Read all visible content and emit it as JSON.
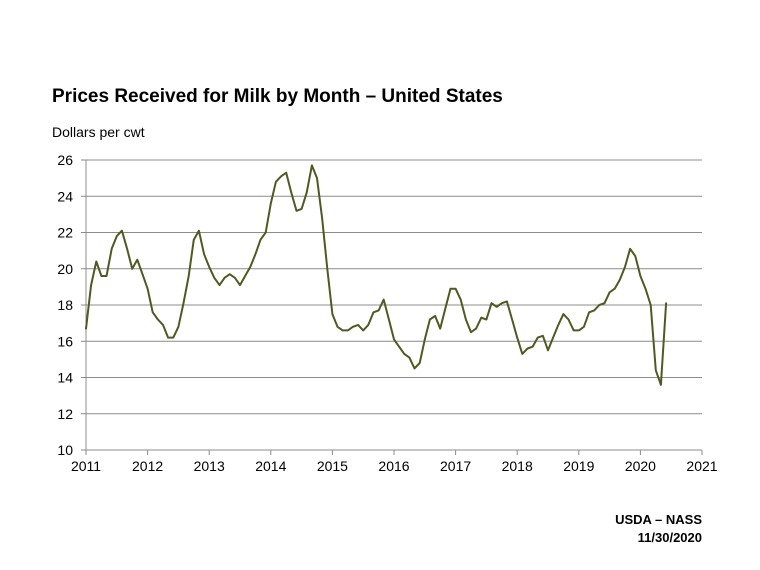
{
  "chart_data": {
    "type": "line",
    "title": "Prices Received for Milk by Month – United States",
    "ylabel": "Dollars per cwt",
    "xlabel": "",
    "xlim": [
      2011,
      2021
    ],
    "ylim": [
      10,
      26
    ],
    "x_ticks": [
      "2011",
      "2012",
      "2013",
      "2014",
      "2015",
      "2016",
      "2017",
      "2018",
      "2019",
      "2020",
      "2021"
    ],
    "y_ticks": [
      "10",
      "12",
      "14",
      "16",
      "18",
      "20",
      "22",
      "24",
      "26"
    ],
    "grid": "horizontal",
    "series": [
      {
        "color": "#4f5a23",
        "x": [
          2011.0,
          2011.083,
          2011.167,
          2011.25,
          2011.333,
          2011.417,
          2011.5,
          2011.583,
          2011.667,
          2011.75,
          2011.833,
          2011.917,
          2012.0,
          2012.083,
          2012.167,
          2012.25,
          2012.333,
          2012.417,
          2012.5,
          2012.583,
          2012.667,
          2012.75,
          2012.833,
          2012.917,
          2013.0,
          2013.083,
          2013.167,
          2013.25,
          2013.333,
          2013.417,
          2013.5,
          2013.583,
          2013.667,
          2013.75,
          2013.833,
          2013.917,
          2014.0,
          2014.083,
          2014.167,
          2014.25,
          2014.333,
          2014.417,
          2014.5,
          2014.583,
          2014.667,
          2014.75,
          2014.833,
          2014.917,
          2015.0,
          2015.083,
          2015.167,
          2015.25,
          2015.333,
          2015.417,
          2015.5,
          2015.583,
          2015.667,
          2015.75,
          2015.833,
          2015.917,
          2016.0,
          2016.083,
          2016.167,
          2016.25,
          2016.333,
          2016.417,
          2016.5,
          2016.583,
          2016.667,
          2016.75,
          2016.833,
          2016.917,
          2017.0,
          2017.083,
          2017.167,
          2017.25,
          2017.333,
          2017.417,
          2017.5,
          2017.583,
          2017.667,
          2017.75,
          2017.833,
          2017.917,
          2018.0,
          2018.083,
          2018.167,
          2018.25,
          2018.333,
          2018.417,
          2018.5,
          2018.583,
          2018.667,
          2018.75,
          2018.833,
          2018.917,
          2019.0,
          2019.083,
          2019.167,
          2019.25,
          2019.333,
          2019.417,
          2019.5,
          2019.583,
          2019.667,
          2019.75,
          2019.833,
          2019.917,
          2020.0,
          2020.083,
          2020.167,
          2020.25,
          2020.333,
          2020.417
        ],
        "values": [
          16.7,
          19.1,
          20.4,
          19.6,
          19.6,
          21.1,
          21.8,
          22.1,
          21.1,
          20.0,
          20.5,
          19.7,
          18.9,
          17.6,
          17.2,
          16.9,
          16.2,
          16.2,
          16.8,
          18.1,
          19.6,
          21.6,
          22.1,
          20.8,
          20.1,
          19.5,
          19.1,
          19.5,
          19.7,
          19.5,
          19.1,
          19.6,
          20.1,
          20.8,
          21.6,
          22.0,
          23.6,
          24.8,
          25.1,
          25.3,
          24.2,
          23.2,
          23.3,
          24.2,
          25.7,
          25.0,
          22.8,
          20.0,
          17.5,
          16.8,
          16.6,
          16.6,
          16.8,
          16.9,
          16.6,
          16.9,
          17.6,
          17.7,
          18.3,
          17.2,
          16.1,
          15.7,
          15.3,
          15.1,
          14.5,
          14.8,
          16.1,
          17.2,
          17.4,
          16.7,
          17.8,
          18.9,
          18.9,
          18.3,
          17.2,
          16.5,
          16.7,
          17.3,
          17.2,
          18.1,
          17.9,
          18.1,
          18.2,
          17.2,
          16.2,
          15.3,
          15.6,
          15.7,
          16.2,
          16.3,
          15.5,
          16.2,
          16.9,
          17.5,
          17.2,
          16.6,
          16.6,
          16.8,
          17.6,
          17.7,
          18.0,
          18.1,
          18.7,
          18.9,
          19.4,
          20.1,
          21.1,
          20.7,
          19.6,
          18.9,
          18.0,
          14.4,
          13.6,
          18.1
        ]
      }
    ]
  },
  "source": {
    "line1": "USDA – NASS",
    "line2": "11/30/2020"
  }
}
